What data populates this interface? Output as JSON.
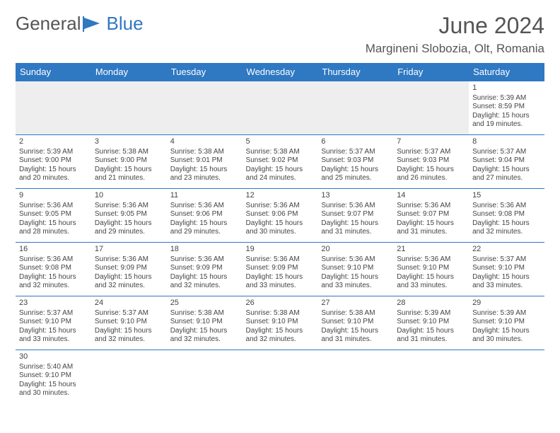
{
  "brand": {
    "part1": "General",
    "part2": "Blue",
    "text_color": "#555555",
    "accent_color": "#2f78c2"
  },
  "title": "June 2024",
  "location": "Margineni Slobozia, Olt, Romania",
  "colors": {
    "header_bg": "#2f78c2",
    "header_text": "#ffffff",
    "row_divider": "#2f78c2",
    "empty_bg": "#eeeeee",
    "body_text": "#444444"
  },
  "day_headers": [
    "Sunday",
    "Monday",
    "Tuesday",
    "Wednesday",
    "Thursday",
    "Friday",
    "Saturday"
  ],
  "weeks": [
    [
      null,
      null,
      null,
      null,
      null,
      null,
      {
        "n": "1",
        "rise": "5:39 AM",
        "set": "8:59 PM",
        "dl": "15 hours and 19 minutes."
      }
    ],
    [
      {
        "n": "2",
        "rise": "5:39 AM",
        "set": "9:00 PM",
        "dl": "15 hours and 20 minutes."
      },
      {
        "n": "3",
        "rise": "5:38 AM",
        "set": "9:00 PM",
        "dl": "15 hours and 21 minutes."
      },
      {
        "n": "4",
        "rise": "5:38 AM",
        "set": "9:01 PM",
        "dl": "15 hours and 23 minutes."
      },
      {
        "n": "5",
        "rise": "5:38 AM",
        "set": "9:02 PM",
        "dl": "15 hours and 24 minutes."
      },
      {
        "n": "6",
        "rise": "5:37 AM",
        "set": "9:03 PM",
        "dl": "15 hours and 25 minutes."
      },
      {
        "n": "7",
        "rise": "5:37 AM",
        "set": "9:03 PM",
        "dl": "15 hours and 26 minutes."
      },
      {
        "n": "8",
        "rise": "5:37 AM",
        "set": "9:04 PM",
        "dl": "15 hours and 27 minutes."
      }
    ],
    [
      {
        "n": "9",
        "rise": "5:36 AM",
        "set": "9:05 PM",
        "dl": "15 hours and 28 minutes."
      },
      {
        "n": "10",
        "rise": "5:36 AM",
        "set": "9:05 PM",
        "dl": "15 hours and 29 minutes."
      },
      {
        "n": "11",
        "rise": "5:36 AM",
        "set": "9:06 PM",
        "dl": "15 hours and 29 minutes."
      },
      {
        "n": "12",
        "rise": "5:36 AM",
        "set": "9:06 PM",
        "dl": "15 hours and 30 minutes."
      },
      {
        "n": "13",
        "rise": "5:36 AM",
        "set": "9:07 PM",
        "dl": "15 hours and 31 minutes."
      },
      {
        "n": "14",
        "rise": "5:36 AM",
        "set": "9:07 PM",
        "dl": "15 hours and 31 minutes."
      },
      {
        "n": "15",
        "rise": "5:36 AM",
        "set": "9:08 PM",
        "dl": "15 hours and 32 minutes."
      }
    ],
    [
      {
        "n": "16",
        "rise": "5:36 AM",
        "set": "9:08 PM",
        "dl": "15 hours and 32 minutes."
      },
      {
        "n": "17",
        "rise": "5:36 AM",
        "set": "9:09 PM",
        "dl": "15 hours and 32 minutes."
      },
      {
        "n": "18",
        "rise": "5:36 AM",
        "set": "9:09 PM",
        "dl": "15 hours and 32 minutes."
      },
      {
        "n": "19",
        "rise": "5:36 AM",
        "set": "9:09 PM",
        "dl": "15 hours and 33 minutes."
      },
      {
        "n": "20",
        "rise": "5:36 AM",
        "set": "9:10 PM",
        "dl": "15 hours and 33 minutes."
      },
      {
        "n": "21",
        "rise": "5:36 AM",
        "set": "9:10 PM",
        "dl": "15 hours and 33 minutes."
      },
      {
        "n": "22",
        "rise": "5:37 AM",
        "set": "9:10 PM",
        "dl": "15 hours and 33 minutes."
      }
    ],
    [
      {
        "n": "23",
        "rise": "5:37 AM",
        "set": "9:10 PM",
        "dl": "15 hours and 33 minutes."
      },
      {
        "n": "24",
        "rise": "5:37 AM",
        "set": "9:10 PM",
        "dl": "15 hours and 32 minutes."
      },
      {
        "n": "25",
        "rise": "5:38 AM",
        "set": "9:10 PM",
        "dl": "15 hours and 32 minutes."
      },
      {
        "n": "26",
        "rise": "5:38 AM",
        "set": "9:10 PM",
        "dl": "15 hours and 32 minutes."
      },
      {
        "n": "27",
        "rise": "5:38 AM",
        "set": "9:10 PM",
        "dl": "15 hours and 31 minutes."
      },
      {
        "n": "28",
        "rise": "5:39 AM",
        "set": "9:10 PM",
        "dl": "15 hours and 31 minutes."
      },
      {
        "n": "29",
        "rise": "5:39 AM",
        "set": "9:10 PM",
        "dl": "15 hours and 30 minutes."
      }
    ],
    [
      {
        "n": "30",
        "rise": "5:40 AM",
        "set": "9:10 PM",
        "dl": "15 hours and 30 minutes."
      },
      null,
      null,
      null,
      null,
      null,
      null
    ]
  ],
  "labels": {
    "sunrise": "Sunrise: ",
    "sunset": "Sunset: ",
    "daylight": "Daylight: "
  }
}
